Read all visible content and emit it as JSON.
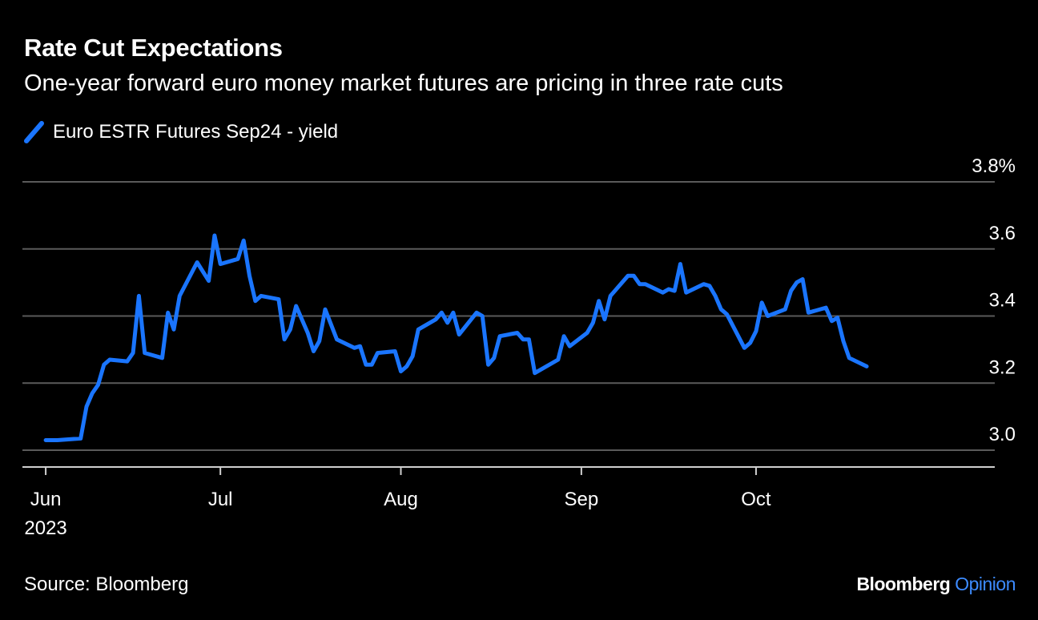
{
  "chart_data": {
    "type": "line",
    "title": "Rate Cut Expectations",
    "subtitle": "One-year forward euro money market futures are pricing in three rate cuts",
    "series": [
      {
        "name": "Euro ESTR Futures Sep24 - yield",
        "color": "#1a75ff",
        "points": [
          [
            1,
            3.03
          ],
          [
            3,
            3.03
          ],
          [
            7,
            3.035
          ],
          [
            8,
            3.13
          ],
          [
            9,
            3.17
          ],
          [
            10,
            3.195
          ],
          [
            11,
            3.255
          ],
          [
            12,
            3.27
          ],
          [
            15,
            3.265
          ],
          [
            16,
            3.29
          ],
          [
            17,
            3.46
          ],
          [
            18,
            3.29
          ],
          [
            21,
            3.275
          ],
          [
            22,
            3.41
          ],
          [
            23,
            3.36
          ],
          [
            24,
            3.46
          ],
          [
            27,
            3.56
          ],
          [
            29,
            3.505
          ],
          [
            30,
            3.64
          ],
          [
            31,
            3.555
          ],
          [
            34,
            3.57
          ],
          [
            35,
            3.625
          ],
          [
            36,
            3.52
          ],
          [
            37,
            3.445
          ],
          [
            38,
            3.46
          ],
          [
            41,
            3.45
          ],
          [
            42,
            3.33
          ],
          [
            43,
            3.36
          ],
          [
            44,
            3.43
          ],
          [
            46,
            3.35
          ],
          [
            47,
            3.295
          ],
          [
            48,
            3.325
          ],
          [
            49,
            3.42
          ],
          [
            51,
            3.33
          ],
          [
            54,
            3.305
          ],
          [
            55,
            3.31
          ],
          [
            56,
            3.255
          ],
          [
            57,
            3.255
          ],
          [
            58,
            3.29
          ],
          [
            61,
            3.295
          ],
          [
            62,
            3.235
          ],
          [
            63,
            3.25
          ],
          [
            64,
            3.28
          ],
          [
            65,
            3.36
          ],
          [
            68,
            3.39
          ],
          [
            69,
            3.41
          ],
          [
            70,
            3.38
          ],
          [
            71,
            3.41
          ],
          [
            72,
            3.345
          ],
          [
            75,
            3.41
          ],
          [
            76,
            3.4
          ],
          [
            77,
            3.255
          ],
          [
            78,
            3.275
          ],
          [
            79,
            3.34
          ],
          [
            82,
            3.35
          ],
          [
            83,
            3.33
          ],
          [
            84,
            3.33
          ],
          [
            85,
            3.23
          ],
          [
            89,
            3.27
          ],
          [
            90,
            3.34
          ],
          [
            91,
            3.31
          ],
          [
            94,
            3.35
          ],
          [
            95,
            3.38
          ],
          [
            96,
            3.445
          ],
          [
            97,
            3.39
          ],
          [
            98,
            3.46
          ],
          [
            101,
            3.52
          ],
          [
            102,
            3.52
          ],
          [
            103,
            3.495
          ],
          [
            104,
            3.495
          ],
          [
            107,
            3.47
          ],
          [
            108,
            3.48
          ],
          [
            109,
            3.475
          ],
          [
            110,
            3.555
          ],
          [
            111,
            3.47
          ],
          [
            114,
            3.495
          ],
          [
            115,
            3.49
          ],
          [
            116,
            3.46
          ],
          [
            117,
            3.42
          ],
          [
            118,
            3.405
          ],
          [
            121,
            3.305
          ],
          [
            122,
            3.32
          ],
          [
            123,
            3.355
          ],
          [
            124,
            3.44
          ],
          [
            125,
            3.4
          ],
          [
            128,
            3.42
          ],
          [
            129,
            3.475
          ],
          [
            130,
            3.5
          ],
          [
            131,
            3.51
          ],
          [
            132,
            3.41
          ],
          [
            135,
            3.425
          ],
          [
            136,
            3.385
          ],
          [
            137,
            3.395
          ],
          [
            138,
            3.325
          ],
          [
            139,
            3.275
          ],
          [
            142,
            3.25
          ]
        ]
      }
    ],
    "x_ticks": [
      {
        "label": "Jun",
        "day": 1
      },
      {
        "label": "Jul",
        "day": 31
      },
      {
        "label": "Aug",
        "day": 62
      },
      {
        "label": "Sep",
        "day": 93
      },
      {
        "label": "Oct",
        "day": 123
      }
    ],
    "x_year_label": "2023",
    "xlim": [
      -3,
      164
    ],
    "ylim": [
      2.95,
      3.8
    ],
    "y_ticks": [
      {
        "value": 3.0,
        "label": "3.0"
      },
      {
        "value": 3.2,
        "label": "3.2"
      },
      {
        "value": 3.4,
        "label": "3.4"
      },
      {
        "value": 3.6,
        "label": "3.6"
      },
      {
        "value": 3.8,
        "label": "3.8%"
      }
    ],
    "xlabel": "",
    "ylabel": "",
    "grid": true,
    "legend_position": "top-left"
  },
  "footer": {
    "source": "Source: Bloomberg",
    "brand_main": "Bloomberg",
    "brand_accent": "Opinion"
  }
}
